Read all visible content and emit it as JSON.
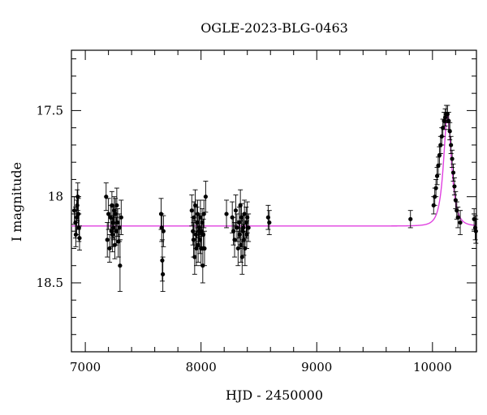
{
  "chart_data": {
    "type": "scatter",
    "title": "OGLE-2023-BLG-0463",
    "xlabel": "HJD - 2450000",
    "ylabel": "I magnitude",
    "xlim": [
      6880,
      10380
    ],
    "ylim": [
      18.9,
      17.15
    ],
    "y_inverted": true,
    "xticks": [
      {
        "value": 7000,
        "label": "7000"
      },
      {
        "value": 8000,
        "label": "8000"
      },
      {
        "value": 9000,
        "label": "9000"
      },
      {
        "value": 10000,
        "label": "10000"
      }
    ],
    "yticks": [
      {
        "value": 17.5,
        "label": "17.5"
      },
      {
        "value": 18.0,
        "label": "18"
      },
      {
        "value": 18.5,
        "label": "18.5"
      }
    ],
    "x_minor_step": 200,
    "y_minor_step": 0.1,
    "grid": false,
    "legend": "none",
    "colors": {
      "points": "#000000",
      "model": "#e040e0",
      "frame": "#000000"
    },
    "model": {
      "baseline": 18.17,
      "peak_time": 10130,
      "peak_mag": 17.52,
      "tE": 52
    },
    "series": [
      {
        "points": [
          [
            6905,
            18.08,
            0.08
          ],
          [
            6915,
            18.15,
            0.09
          ],
          [
            6918,
            18.22,
            0.07
          ],
          [
            6925,
            18.12,
            0.1
          ],
          [
            6930,
            18.05,
            0.09
          ],
          [
            6935,
            18.0,
            0.08
          ],
          [
            6940,
            18.1,
            0.09
          ],
          [
            6945,
            18.18,
            0.08
          ],
          [
            6950,
            18.24,
            0.07
          ],
          [
            7180,
            18.0,
            0.08
          ],
          [
            7190,
            18.25,
            0.1
          ],
          [
            7200,
            18.1,
            0.09
          ],
          [
            7210,
            18.3,
            0.08
          ],
          [
            7218,
            18.12,
            0.07
          ],
          [
            7225,
            18.2,
            0.09
          ],
          [
            7230,
            18.05,
            0.08
          ],
          [
            7235,
            18.22,
            0.1
          ],
          [
            7240,
            18.15,
            0.09
          ],
          [
            7245,
            18.18,
            0.07
          ],
          [
            7250,
            18.08,
            0.08
          ],
          [
            7255,
            18.28,
            0.08
          ],
          [
            7260,
            18.1,
            0.09
          ],
          [
            7268,
            18.2,
            0.08
          ],
          [
            7272,
            18.05,
            0.1
          ],
          [
            7280,
            18.15,
            0.08
          ],
          [
            7285,
            18.26,
            0.09
          ],
          [
            7295,
            18.18,
            0.08
          ],
          [
            7300,
            18.4,
            0.15
          ],
          [
            7310,
            18.12,
            0.1
          ],
          [
            7655,
            18.1,
            0.09
          ],
          [
            7660,
            18.18,
            0.08
          ],
          [
            7665,
            18.37,
            0.12
          ],
          [
            7670,
            18.45,
            0.1
          ],
          [
            7675,
            18.2,
            0.09
          ],
          [
            7920,
            18.08,
            0.09
          ],
          [
            7930,
            18.2,
            0.08
          ],
          [
            7935,
            18.25,
            0.1
          ],
          [
            7940,
            18.12,
            0.09
          ],
          [
            7945,
            18.35,
            0.1
          ],
          [
            7950,
            18.05,
            0.09
          ],
          [
            7955,
            18.22,
            0.08
          ],
          [
            7960,
            18.3,
            0.1
          ],
          [
            7965,
            18.15,
            0.09
          ],
          [
            7970,
            18.1,
            0.08
          ],
          [
            7975,
            18.28,
            0.1
          ],
          [
            7980,
            18.2,
            0.09
          ],
          [
            7985,
            18.18,
            0.08
          ],
          [
            7990,
            18.25,
            0.08
          ],
          [
            7995,
            18.12,
            0.1
          ],
          [
            8000,
            18.3,
            0.1
          ],
          [
            8005,
            18.2,
            0.09
          ],
          [
            8010,
            18.15,
            0.08
          ],
          [
            8015,
            18.4,
            0.1
          ],
          [
            8020,
            18.22,
            0.09
          ],
          [
            8025,
            18.1,
            0.08
          ],
          [
            8030,
            18.3,
            0.1
          ],
          [
            8040,
            18.0,
            0.09
          ],
          [
            8220,
            18.1,
            0.08
          ],
          [
            8270,
            18.12,
            0.09
          ],
          [
            8280,
            18.2,
            0.08
          ],
          [
            8290,
            18.25,
            0.1
          ],
          [
            8300,
            18.08,
            0.09
          ],
          [
            8310,
            18.18,
            0.08
          ],
          [
            8320,
            18.3,
            0.1
          ],
          [
            8330,
            18.15,
            0.09
          ],
          [
            8335,
            18.22,
            0.08
          ],
          [
            8340,
            18.05,
            0.09
          ],
          [
            8345,
            18.28,
            0.1
          ],
          [
            8350,
            18.12,
            0.08
          ],
          [
            8355,
            18.35,
            0.1
          ],
          [
            8360,
            18.2,
            0.09
          ],
          [
            8365,
            18.18,
            0.08
          ],
          [
            8370,
            18.25,
            0.09
          ],
          [
            8375,
            18.1,
            0.08
          ],
          [
            8380,
            18.3,
            0.1
          ],
          [
            8390,
            18.15,
            0.09
          ],
          [
            8395,
            18.22,
            0.08
          ],
          [
            8400,
            18.12,
            0.09
          ],
          [
            8410,
            18.18,
            0.08
          ],
          [
            8580,
            18.12,
            0.07
          ],
          [
            8590,
            18.15,
            0.07
          ],
          [
            9810,
            18.13,
            0.05
          ],
          [
            10010,
            18.05,
            0.05
          ],
          [
            10020,
            18.0,
            0.05
          ],
          [
            10030,
            17.95,
            0.05
          ],
          [
            10040,
            17.88,
            0.05
          ],
          [
            10050,
            17.82,
            0.05
          ],
          [
            10060,
            17.76,
            0.05
          ],
          [
            10070,
            17.7,
            0.05
          ],
          [
            10080,
            17.65,
            0.05
          ],
          [
            10090,
            17.6,
            0.05
          ],
          [
            10100,
            17.56,
            0.05
          ],
          [
            10110,
            17.54,
            0.05
          ],
          [
            10120,
            17.52,
            0.05
          ],
          [
            10130,
            17.52,
            0.05
          ],
          [
            10140,
            17.56,
            0.05
          ],
          [
            10150,
            17.62,
            0.05
          ],
          [
            10160,
            17.7,
            0.05
          ],
          [
            10170,
            17.78,
            0.05
          ],
          [
            10180,
            17.86,
            0.05
          ],
          [
            10190,
            17.94,
            0.05
          ],
          [
            10200,
            18.02,
            0.05
          ],
          [
            10210,
            18.08,
            0.05
          ],
          [
            10220,
            18.12,
            0.06
          ],
          [
            10240,
            18.15,
            0.07
          ],
          [
            10360,
            18.13,
            0.06
          ],
          [
            10370,
            18.18,
            0.07
          ],
          [
            10375,
            18.2,
            0.07
          ]
        ]
      }
    ]
  }
}
